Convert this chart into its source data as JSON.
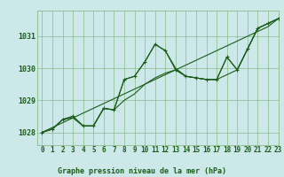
{
  "title": "Graphe pression niveau de la mer (hPa)",
  "background_color": "#cce8e8",
  "grid_color": "#88bb88",
  "line_color": "#1a5c1a",
  "xlim": [
    -0.5,
    23
  ],
  "ylim": [
    1027.6,
    1031.8
  ],
  "xticks": [
    0,
    1,
    2,
    3,
    4,
    5,
    6,
    7,
    8,
    9,
    10,
    11,
    12,
    13,
    14,
    15,
    16,
    17,
    18,
    19,
    20,
    21,
    22,
    23
  ],
  "yticks": [
    1028,
    1029,
    1030,
    1031
  ],
  "x": [
    0,
    1,
    2,
    3,
    4,
    5,
    6,
    7,
    8,
    9,
    10,
    11,
    12,
    13,
    14,
    15,
    16,
    17,
    18,
    19,
    20,
    21,
    22,
    23
  ],
  "pressure_main": [
    1028.0,
    1028.1,
    1028.4,
    1028.5,
    1028.2,
    1028.2,
    1028.75,
    1028.7,
    1029.65,
    1029.75,
    1030.2,
    1030.75,
    1030.55,
    1029.95,
    1029.75,
    1029.7,
    1029.65,
    1029.65,
    1030.35,
    1029.95,
    1030.6,
    1031.25,
    1031.4,
    1031.55
  ],
  "pressure_min": [
    1028.0,
    1028.1,
    1028.4,
    1028.45,
    1028.2,
    1028.2,
    1028.75,
    1028.7,
    1029.0,
    1029.2,
    1029.5,
    1029.7,
    1029.85,
    1029.95,
    1029.75,
    1029.7,
    1029.65,
    1029.65,
    1029.8,
    1029.95,
    1030.6,
    1031.25,
    1031.4,
    1031.55
  ],
  "pressure_max": [
    1028.0,
    1028.1,
    1028.4,
    1028.5,
    1028.2,
    1028.2,
    1028.75,
    1028.7,
    1029.65,
    1029.75,
    1030.2,
    1030.75,
    1030.55,
    1030.0,
    1029.75,
    1029.7,
    1029.65,
    1029.65,
    1030.35,
    1029.95,
    1030.6,
    1031.25,
    1031.4,
    1031.55
  ],
  "pressure_trend": [
    1028.0,
    1028.15,
    1028.3,
    1028.45,
    1028.6,
    1028.75,
    1028.9,
    1029.05,
    1029.2,
    1029.35,
    1029.5,
    1029.65,
    1029.8,
    1029.95,
    1030.1,
    1030.25,
    1030.4,
    1030.55,
    1030.7,
    1030.85,
    1031.0,
    1031.15,
    1031.3,
    1031.55
  ],
  "tick_fontsize": 5.5,
  "label_fontsize": 6.0,
  "linewidth": 0.8
}
